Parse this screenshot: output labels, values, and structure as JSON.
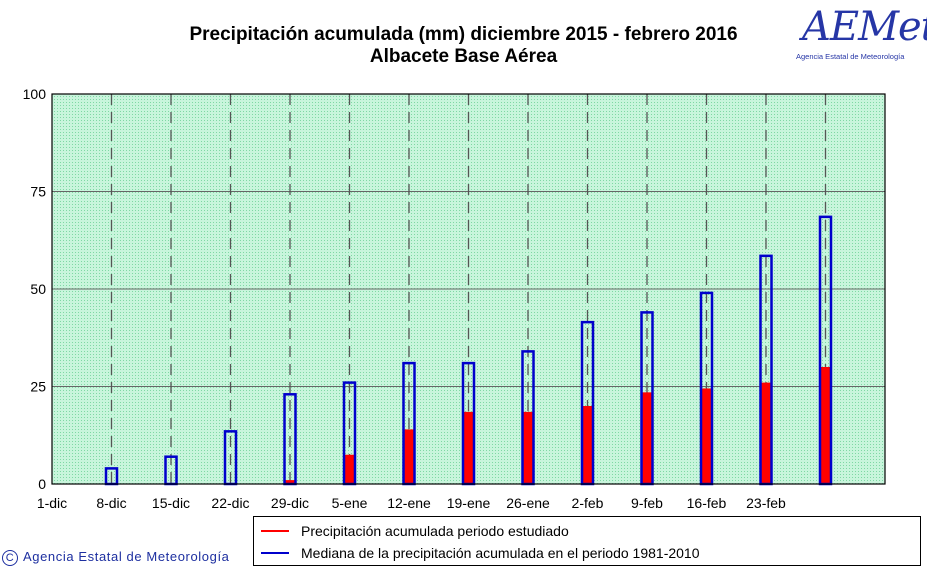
{
  "logo": {
    "word": "AEMet",
    "subtitle": "Agencia Estatal de Meteorología"
  },
  "legend": {
    "studied": "Precipitación acumulada periodo estudiado",
    "median": "Mediana de la precipitación acumulada en el periodo 1981-2010",
    "studied_color": "#ff0000",
    "median_color": "#0000cc"
  },
  "copyright": {
    "symbol": "C",
    "text": "Agencia Estatal de Meteorología"
  },
  "chart_data": {
    "type": "bar",
    "title": "Precipitación acumulada (mm) diciembre 2015 - febrero 2016",
    "subtitle": "Albacete Base Aérea",
    "xlabel": "",
    "ylabel": "",
    "ylim": [
      0,
      100
    ],
    "yticks": [
      0,
      25,
      50,
      75,
      100
    ],
    "grid": true,
    "background": "#c8f5dc",
    "categories": [
      "1-dic",
      "8-dic",
      "15-dic",
      "22-dic",
      "29-dic",
      "5-ene",
      "12-ene",
      "19-ene",
      "26-ene",
      "2-feb",
      "9-feb",
      "16-feb",
      "23-feb",
      ""
    ],
    "series": [
      {
        "name": "Mediana de la precipitación acumulada en el periodo 1981-2010",
        "color": "#0000cc",
        "style": "outline",
        "values": [
          0,
          4,
          7,
          13.5,
          23,
          26,
          31,
          31,
          34,
          41.5,
          44,
          49,
          58.5,
          68.5
        ]
      },
      {
        "name": "Precipitación acumulada periodo estudiado",
        "color": "#ff0000",
        "style": "filled",
        "values": [
          0,
          0,
          0,
          0,
          1,
          7.5,
          14,
          18.5,
          18.5,
          20,
          23.5,
          24.5,
          26,
          30
        ]
      }
    ],
    "legend_position": "bottom-right"
  }
}
